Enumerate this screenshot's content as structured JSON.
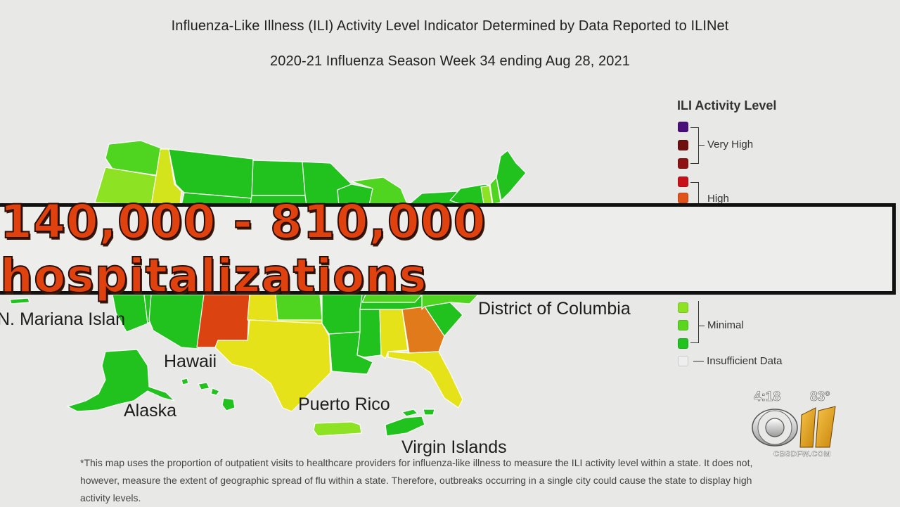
{
  "header": {
    "title": "Influenza-Like Illness (ILI) Activity Level Indicator Determined by Data Reported to ILINet",
    "subtitle": "2020-21 Influenza Season Week 34 ending Aug 28, 2021"
  },
  "map": {
    "territory_labels": {
      "mariana": "N. Mariana Islan",
      "hawaii": "Hawaii",
      "alaska": "Alaska",
      "puerto_rico": "Puerto Rico",
      "virgin_islands": "Virgin Islands",
      "dc": "District of Columbia"
    },
    "colors": {
      "minimal": "#22c21e",
      "minimal_light": "#4fd41f",
      "low": "#8ee224",
      "moderate": "#d4e41c",
      "moderate_yellow": "#e6e21a",
      "high_orange": "#e07a1a",
      "high_red": "#db4310"
    }
  },
  "legend": {
    "title": "ILI Activity Level",
    "groups": {
      "very_high": "Very High",
      "high": "High",
      "minimal": "Minimal",
      "insufficient": "— Insufficient Data"
    },
    "swatch_colors": {
      "very_high_1": "#4a0e7a",
      "very_high_2": "#6e1010",
      "very_high_3": "#8e1212",
      "high_1": "#c8101a",
      "high_2": "#e0531a",
      "minimal_1": "#8ee224",
      "minimal_2": "#5bd61f",
      "minimal_3": "#22c21e",
      "insufficient": "#eeeeee"
    }
  },
  "banner": {
    "text": "140,000 - 810,000 hospitalizations",
    "text_color": "#e0420f"
  },
  "footnote": {
    "text": "*This map uses the proportion of outpatient visits to healthcare providers for influenza-like illness to measure the ILI activity level within a state. It does not, however, measure the extent of geographic spread of flu within a state. Therefore, outbreaks occurring in a single city could cause the state to display high activity levels."
  },
  "station_bug": {
    "time": "4:18",
    "temperature": "83°",
    "channel_number": "11",
    "website": "CBSDFW.COM"
  }
}
